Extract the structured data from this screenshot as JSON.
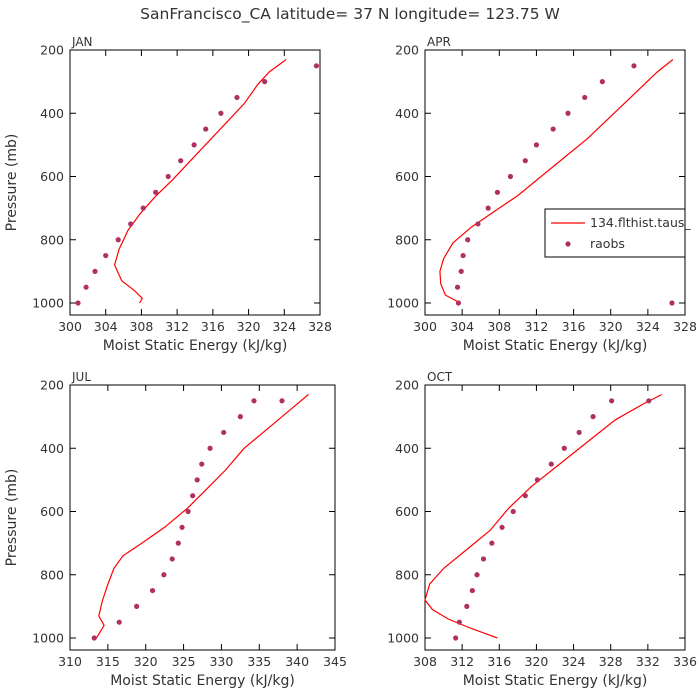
{
  "title": "SanFrancisco_CA  latitude= 37 N longitude= 123.75 W",
  "colors": {
    "model": "#ff0000",
    "obs": "#b03060",
    "axis": "#000000",
    "text": "#333333"
  },
  "legend": {
    "entries": [
      "134.flthist.taus_",
      "raobs"
    ],
    "placement": "right-middle of APR panel"
  },
  "chart_data": [
    {
      "type": "line",
      "panel": "JAN",
      "xlabel": "Moist Static Energy (kJ/kg)",
      "ylabel": "Pressure (mb)",
      "xlim": [
        300,
        328
      ],
      "xticks": [
        300,
        304,
        308,
        312,
        316,
        320,
        324,
        328
      ],
      "ylim": [
        1025,
        200
      ],
      "yticks": [
        200,
        400,
        600,
        800,
        1000
      ],
      "series": [
        {
          "name": "134.flthist.taus_",
          "style": "line",
          "x": [
            307.8,
            308.1,
            307.2,
            305.8,
            305.0,
            305.5,
            306.5,
            307.8,
            309.5,
            311.5,
            313.5,
            315.5,
            317.5,
            319.5,
            321.0,
            322.3,
            324.2
          ],
          "y": [
            1000,
            985,
            960,
            930,
            880,
            830,
            770,
            720,
            665,
            610,
            550,
            490,
            430,
            370,
            310,
            270,
            230
          ]
        },
        {
          "name": "raobs",
          "style": "markers",
          "x": [
            300.9,
            301.8,
            302.8,
            304.0,
            305.4,
            306.8,
            308.2,
            309.6,
            311.0,
            312.4,
            313.9,
            315.2,
            316.9,
            318.7,
            321.8,
            327.6
          ],
          "y": [
            1000,
            950,
            900,
            850,
            800,
            750,
            700,
            650,
            600,
            550,
            500,
            450,
            400,
            350,
            300,
            250
          ]
        }
      ]
    },
    {
      "type": "line",
      "panel": "APR",
      "xlabel": "Moist Static Energy (kJ/kg)",
      "ylabel": "",
      "xlim": [
        300,
        328
      ],
      "xticks": [
        300,
        304,
        308,
        312,
        316,
        320,
        324,
        328
      ],
      "ylim": [
        1025,
        200
      ],
      "yticks": [
        200,
        400,
        600,
        800,
        1000
      ],
      "series": [
        {
          "name": "134.flthist.taus_",
          "style": "line",
          "x": [
            303.8,
            302.2,
            301.7,
            301.6,
            302.0,
            303.0,
            305.0,
            307.5,
            310.0,
            312.5,
            315.0,
            317.5,
            320.0,
            322.5,
            325.0,
            326.7
          ],
          "y": [
            1000,
            975,
            940,
            900,
            860,
            810,
            760,
            710,
            660,
            600,
            540,
            480,
            410,
            340,
            270,
            230
          ]
        },
        {
          "name": "raobs",
          "style": "markers",
          "x": [
            303.6,
            303.5,
            303.9,
            304.1,
            304.6,
            305.7,
            306.8,
            307.8,
            309.2,
            310.8,
            312.0,
            313.8,
            315.4,
            317.2,
            319.1,
            322.5,
            326.6
          ],
          "y": [
            1000,
            950,
            900,
            850,
            800,
            750,
            700,
            650,
            600,
            550,
            500,
            450,
            400,
            350,
            300,
            250,
            1000
          ]
        }
      ]
    },
    {
      "type": "line",
      "panel": "JUL",
      "xlabel": "Moist Static Energy (kJ/kg)",
      "ylabel": "Pressure (mb)",
      "xlim": [
        310,
        345
      ],
      "xticks": [
        310,
        315,
        320,
        325,
        330,
        335,
        340,
        345
      ],
      "ylim": [
        1025,
        200
      ],
      "yticks": [
        200,
        400,
        600,
        800,
        1000
      ],
      "series": [
        {
          "name": "134.flthist.taus_",
          "style": "line",
          "x": [
            313.5,
            314.5,
            313.8,
            314.3,
            315.0,
            315.8,
            317.0,
            319.5,
            322.5,
            325.5,
            328.0,
            330.5,
            333.0,
            336.0,
            339.0,
            341.5
          ],
          "y": [
            1000,
            960,
            930,
            880,
            830,
            780,
            740,
            700,
            650,
            590,
            530,
            470,
            400,
            340,
            280,
            230
          ]
        },
        {
          "name": "raobs",
          "style": "markers",
          "x": [
            313.2,
            316.5,
            318.8,
            320.9,
            322.4,
            323.5,
            324.3,
            324.8,
            325.6,
            326.2,
            326.8,
            327.4,
            328.5,
            330.3,
            332.5,
            334.3,
            338.0
          ],
          "y": [
            1000,
            950,
            900,
            850,
            800,
            750,
            700,
            650,
            600,
            550,
            500,
            450,
            400,
            350,
            300,
            250,
            250
          ]
        }
      ]
    },
    {
      "type": "line",
      "panel": "OCT",
      "xlabel": "Moist Static Energy (kJ/kg)",
      "ylabel": "",
      "xlim": [
        308,
        336
      ],
      "xticks": [
        308,
        312,
        316,
        320,
        324,
        328,
        332,
        336
      ],
      "ylim": [
        1025,
        200
      ],
      "yticks": [
        200,
        400,
        600,
        800,
        1000
      ],
      "series": [
        {
          "name": "134.flthist.taus_",
          "style": "line",
          "x": [
            315.8,
            313.0,
            310.5,
            308.8,
            308.0,
            308.5,
            310.0,
            312.5,
            315.0,
            317.0,
            319.5,
            322.5,
            325.5,
            328.5,
            331.5,
            333.5
          ],
          "y": [
            1000,
            970,
            940,
            910,
            880,
            830,
            780,
            720,
            660,
            590,
            520,
            450,
            380,
            310,
            260,
            230
          ]
        },
        {
          "name": "raobs",
          "style": "markers",
          "x": [
            311.3,
            311.7,
            312.5,
            313.1,
            313.6,
            314.3,
            315.2,
            316.3,
            317.5,
            318.8,
            320.1,
            321.6,
            323.0,
            324.6,
            326.1,
            328.1,
            332.1
          ],
          "y": [
            1000,
            950,
            900,
            850,
            800,
            750,
            700,
            650,
            600,
            550,
            500,
            450,
            400,
            350,
            300,
            250,
            250
          ]
        }
      ]
    }
  ]
}
